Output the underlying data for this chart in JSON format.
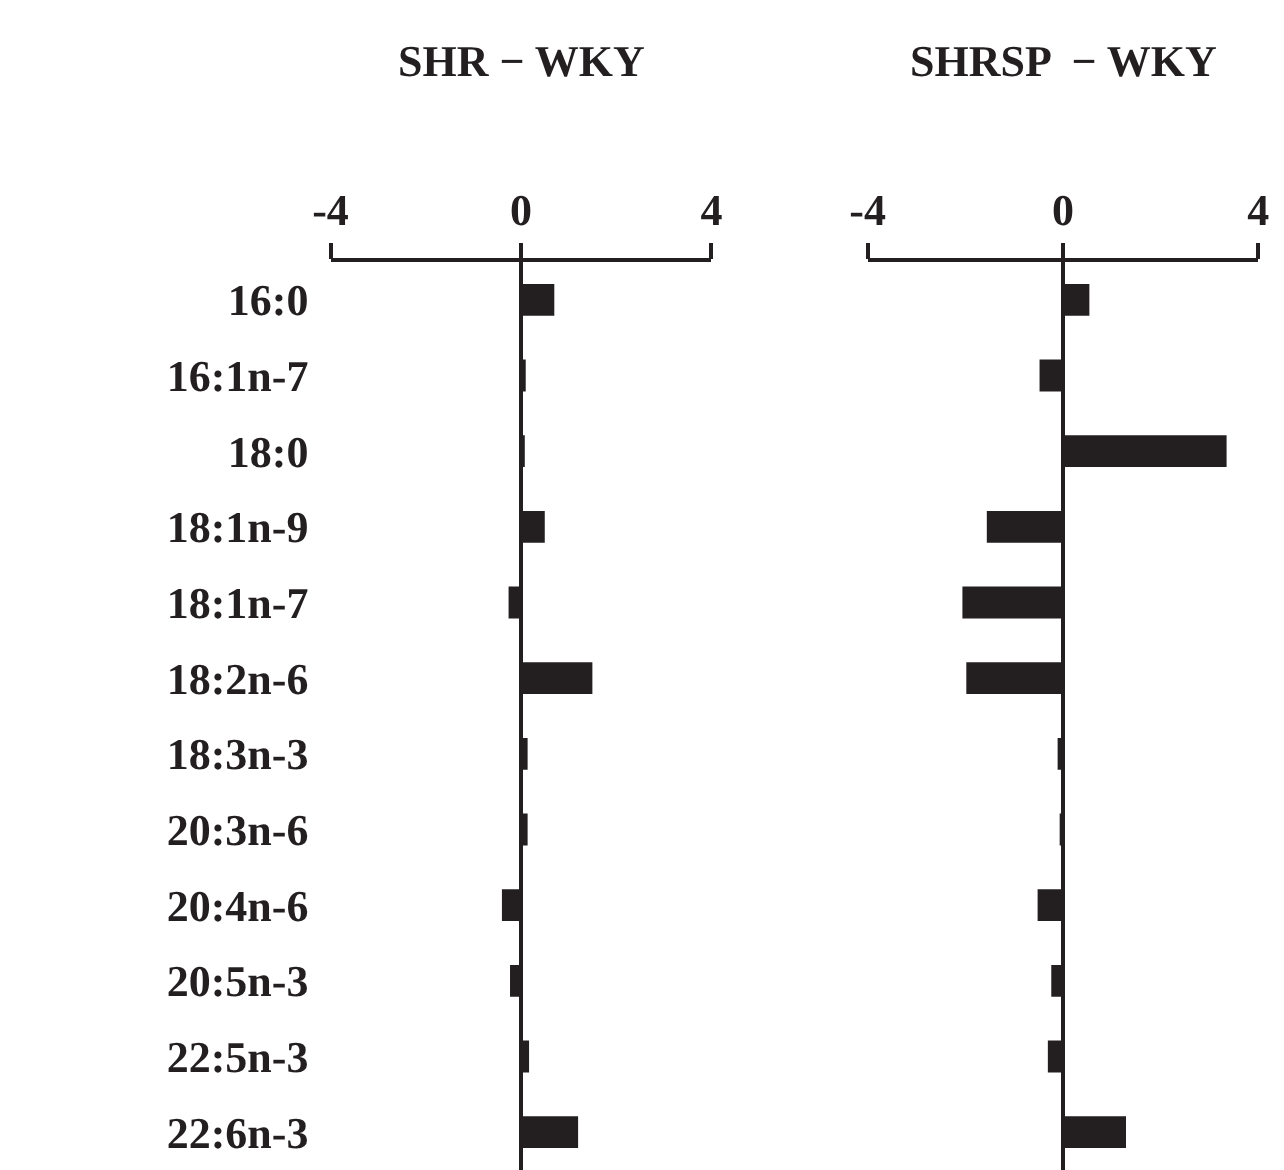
{
  "chart_data": [
    {
      "type": "bar",
      "orientation": "horizontal",
      "title": "SHR − WKY",
      "categories": [
        "16:0",
        "16:1n-7",
        "18:0",
        "18:1n-9",
        "18:1n-7",
        "18:2n-6",
        "18:3n-3",
        "20:3n-6",
        "20:4n-6",
        "20:5n-3",
        "22:5n-3",
        "22:6n-3"
      ],
      "values": [
        0.7,
        0.1,
        0.08,
        0.5,
        -0.26,
        1.5,
        0.14,
        0.14,
        -0.4,
        -0.23,
        0.17,
        1.2
      ],
      "color": "#231f20",
      "xlim": [
        -4,
        4
      ],
      "xticks": [
        -4,
        0,
        4
      ]
    },
    {
      "type": "bar",
      "orientation": "horizontal",
      "title": "SHRSP  − WKY",
      "categories": [
        null,
        null,
        null,
        null,
        null,
        null,
        null,
        null,
        null,
        null,
        null,
        null
      ],
      "values": [
        0.54,
        -0.48,
        3.35,
        -1.56,
        -2.06,
        -1.98,
        -0.11,
        -0.05,
        -0.52,
        -0.24,
        -0.31,
        1.29
      ],
      "color": "#231f20",
      "xlim": [
        -4,
        4
      ],
      "xticks": [
        -4,
        0,
        4
      ],
      "tick_labels": "x"
    }
  ]
}
